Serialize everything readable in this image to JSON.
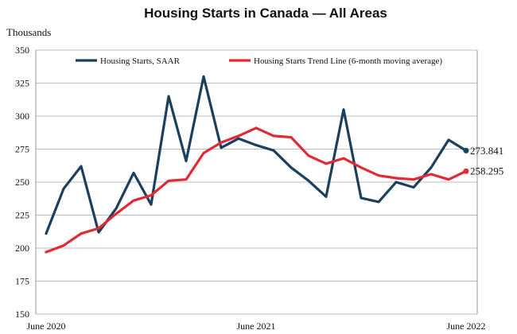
{
  "chart_data": {
    "type": "line",
    "title": "Housing Starts in Canada — All Areas",
    "ylabel": "Thousands",
    "ylim": [
      150,
      350
    ],
    "yticks": [
      150,
      175,
      200,
      225,
      250,
      275,
      300,
      325,
      350
    ],
    "xtick_labels": [
      "June 2020",
      "June 2021",
      "June 2022"
    ],
    "xtick_index": [
      0,
      12,
      24
    ],
    "grid": true,
    "legend": "top",
    "x": [
      "June 2020",
      "July 2020",
      "August 2020",
      "September 2020",
      "October 2020",
      "November 2020",
      "December 2020",
      "January 2021",
      "February 2021",
      "March 2021",
      "April 2021",
      "May 2021",
      "June 2021",
      "July 2021",
      "August 2021",
      "September 2021",
      "October 2021",
      "November 2021",
      "December 2021",
      "January 2022",
      "February 2022",
      "March 2022",
      "April 2022",
      "May 2022",
      "June 2022"
    ],
    "series": [
      {
        "name": "Housing Starts, SAAR",
        "color": "#1b3f5e",
        "values": [
          211,
          245,
          262,
          212,
          230,
          257,
          233,
          315,
          266,
          330,
          276,
          283,
          278,
          274,
          261,
          251,
          239,
          305,
          238,
          235,
          250,
          246,
          261,
          282,
          273.841
        ],
        "end_label": "273.841"
      },
      {
        "name": "Housing Starts Trend Line (6-month moving average)",
        "color": "#e02a36",
        "values": [
          197,
          202,
          211,
          215,
          226,
          236,
          240,
          251,
          252,
          272,
          280,
          285,
          291,
          285,
          284,
          270,
          264,
          268,
          261,
          255,
          253,
          252,
          256,
          252,
          258.295
        ],
        "end_label": "258.295"
      }
    ]
  }
}
